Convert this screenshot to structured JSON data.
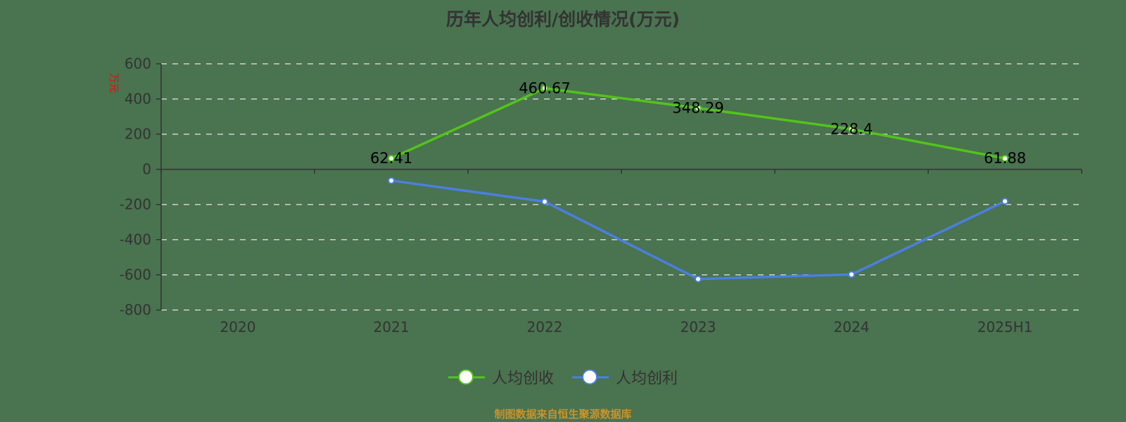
{
  "title": "历年人均创利/创收情况(万元)",
  "y_axis_unit": "万元",
  "footnote": "制图数据来自恒生聚源数据库",
  "colors": {
    "background": "#4a7350",
    "series_revenue": "#52c41a",
    "series_profit": "#4a7fe0",
    "unit_label": "#ff0000",
    "footnote": "#c9932b",
    "grid": "#d0d0d0",
    "axis": "#333333"
  },
  "legend": [
    {
      "label": "人均创收",
      "color": "#52c41a"
    },
    {
      "label": "人均创利",
      "color": "#4a7fe0"
    }
  ],
  "chart_data": {
    "type": "line",
    "title": "历年人均创利/创收情况(万元)",
    "xlabel": "",
    "ylabel": "万元",
    "categories": [
      "2020",
      "2021",
      "2022",
      "2023",
      "2024",
      "2025H1"
    ],
    "ylim": [
      -800,
      600
    ],
    "yticks": [
      600,
      400,
      200,
      0,
      -200,
      -400,
      -600,
      -800
    ],
    "grid": true,
    "legend_position": "bottom",
    "series": [
      {
        "name": "人均创收",
        "values": [
          null,
          62.41,
          460.67,
          348.29,
          228.4,
          61.88
        ],
        "labels": [
          "",
          "62.41",
          "460.67",
          "348.29",
          "228.4",
          "61.88"
        ]
      },
      {
        "name": "人均创利",
        "values": [
          null,
          -64,
          -184,
          -624,
          -598,
          -182
        ]
      }
    ]
  }
}
